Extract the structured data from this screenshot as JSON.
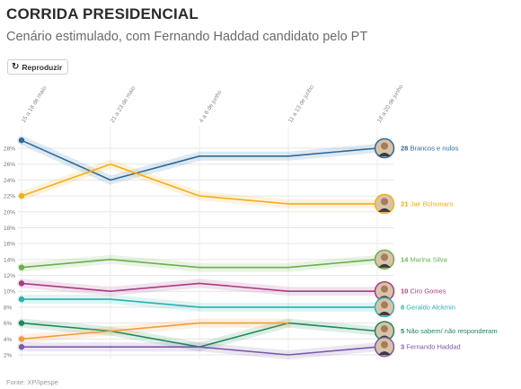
{
  "header": {
    "title": "CORRIDA PRESIDENCIAL",
    "subtitle": "Cenário estimulado, com Fernando Haddad candidato pelo PT"
  },
  "toolbar": {
    "replay_label": "Reproduzir",
    "replay_icon": "replay-icon"
  },
  "footer": {
    "source": "Fonte: XP/Ipespe"
  },
  "chart_data": {
    "type": "line",
    "x": [
      "15 a 18 de maio",
      "21 a 23 de maio",
      "4 a 6 de junho",
      "11 a 13 de junho",
      "18 a 20 de junho"
    ],
    "yticks": [
      "2%",
      "4%",
      "6%",
      "8%",
      "10%",
      "12%",
      "14%",
      "16%",
      "18%",
      "20%",
      "22%",
      "24%",
      "26%",
      "28%"
    ],
    "ylim": [
      1,
      30
    ],
    "grid": true,
    "series": [
      {
        "name": "Brancos e nulos",
        "label_value": "28",
        "color": "#2b6a9e",
        "values": [
          29,
          24,
          27,
          27,
          28
        ]
      },
      {
        "name": "Jair Bolsonaro",
        "label_value": "21",
        "color": "#f4ae1a",
        "values": [
          22,
          26,
          22,
          21,
          21
        ]
      },
      {
        "name": "Marina Silva",
        "label_value": "14",
        "color": "#6ab04c",
        "values": [
          13,
          14,
          13,
          13,
          14
        ]
      },
      {
        "name": "Ciro Gomes",
        "label_value": "10",
        "color": "#a93c85",
        "values": [
          11,
          10,
          11,
          10,
          10
        ]
      },
      {
        "name": "Geraldo Alckmin",
        "label_value": "8",
        "color": "#2bb0b0",
        "values": [
          9,
          9,
          8,
          8,
          8
        ]
      },
      {
        "name": "Não sabem/ não responderam",
        "label_value": "5",
        "color": "#1e8a5a",
        "values": [
          6,
          5,
          3,
          6,
          5
        ]
      },
      {
        "name": "Fernando Haddad",
        "label_value": "3",
        "color": "#7a5aa8",
        "values": [
          3,
          3,
          3,
          2,
          3
        ]
      },
      {
        "name": "",
        "label_value": "",
        "color": "#f19c3a",
        "values": [
          4,
          5,
          6,
          6,
          null
        ]
      }
    ]
  }
}
